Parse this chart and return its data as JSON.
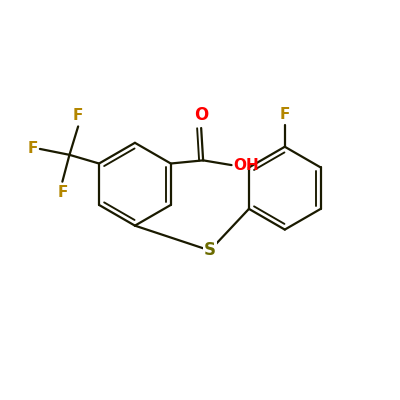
{
  "bg_color": "#ffffff",
  "bond_color": "#1a1a00",
  "o_color": "#ff0000",
  "f_color": "#b38600",
  "s_color": "#6b6b00",
  "line_width": 1.6,
  "dbo": 0.12,
  "figsize": [
    4.0,
    4.0
  ],
  "dpi": 100,
  "xlim": [
    0,
    10
  ],
  "ylim": [
    0,
    10
  ]
}
